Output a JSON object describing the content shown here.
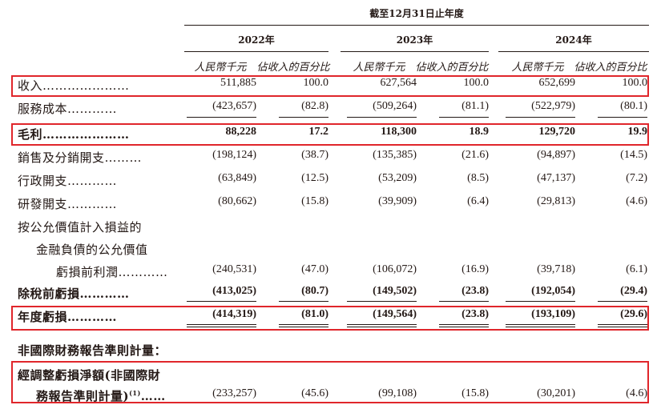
{
  "header": {
    "period": "截至12月31日止年度",
    "years": [
      "2022年",
      "2023年",
      "2024年"
    ],
    "col_rmb": "人民幣千元",
    "col_pct": "佔收入的百分比"
  },
  "rows": [
    {
      "label": "收入",
      "dots": "…………………",
      "values": [
        "511,885",
        "100.0",
        "627,564",
        "100.0",
        "652,699",
        "100.0"
      ]
    },
    {
      "label": "服務成本",
      "dots": "…………",
      "values": [
        "(423,657)",
        "(82.8)",
        "(509,264)",
        "(81.1)",
        "(522,979)",
        "(80.1)"
      ]
    },
    {
      "label": "毛利",
      "dots": "…………………",
      "values": [
        "88,228",
        "17.2",
        "118,300",
        "18.9",
        "129,720",
        "19.9"
      ]
    },
    {
      "label": "銷售及分銷開支",
      "dots": "………",
      "values": [
        "(198,124)",
        "(38.7)",
        "(135,385)",
        "(21.6)",
        "(94,897)",
        "(14.5)"
      ]
    },
    {
      "label": "行政開支",
      "dots": "…………",
      "values": [
        "(63,849)",
        "(12.5)",
        "(53,209)",
        "(8.5)",
        "(47,137)",
        "(7.2)"
      ]
    },
    {
      "label": "研發開支",
      "dots": "…………",
      "values": [
        "(80,662)",
        "(15.8)",
        "(39,909)",
        "(6.4)",
        "(29,813)",
        "(4.6)"
      ]
    },
    {
      "label_lines": [
        "按公允價值計入損益的",
        "金融負債的公允價值",
        "虧損前利潤"
      ],
      "dots": "…………",
      "values": [
        "(240,531)",
        "(47.0)",
        "(106,072)",
        "(16.9)",
        "(39,718)",
        "(6.1)"
      ]
    },
    {
      "label": "除稅前虧損",
      "dots": "…………",
      "values": [
        "(413,025)",
        "(80.7)",
        "(149,502)",
        "(23.8)",
        "(192,054)",
        "(29.4)"
      ]
    },
    {
      "label": "年度虧損",
      "dots": "…………",
      "values": [
        "(414,319)",
        "(81.0)",
        "(149,564)",
        "(23.8)",
        "(193,109)",
        "(29.6)"
      ]
    }
  ],
  "non_ifrs": {
    "heading": "非國際財務報告準則計量：",
    "label_lines": [
      "經調整虧損淨額(非國際財",
      "務報告準則計量)"
    ],
    "footnote": "(1)",
    "dots": "……",
    "values": [
      "(233,257)",
      "(45.6)",
      "(99,108)",
      "(15.8)",
      "(30,201)",
      "(4.6)"
    ]
  }
}
